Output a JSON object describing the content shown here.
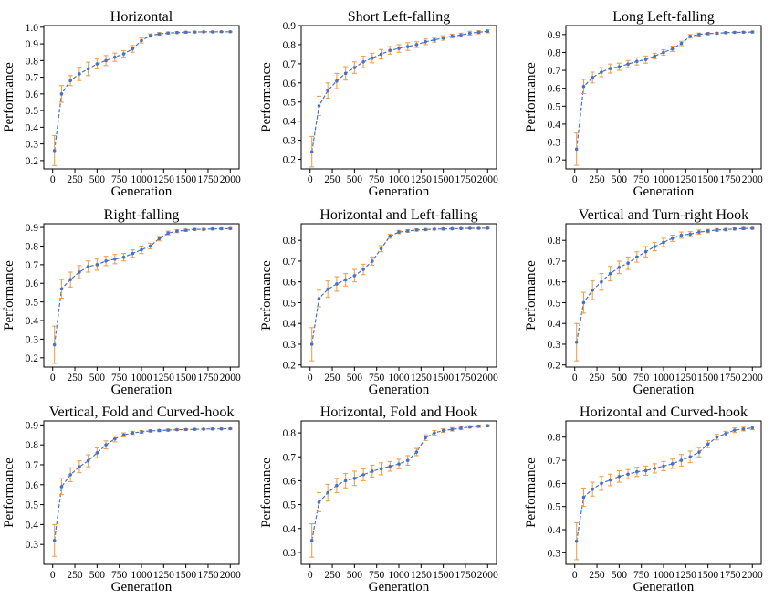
{
  "chart_data": [
    {
      "type": "line",
      "title": "Horizontal",
      "xlabel": "Generation",
      "ylabel": "Performance",
      "xlim": [
        -100,
        2100
      ],
      "ylim": [
        0.15,
        1.01
      ],
      "xticks": [
        0,
        250,
        500,
        750,
        1000,
        1250,
        1500,
        1750,
        2000
      ],
      "yticks": [
        0.2,
        0.3,
        0.4,
        0.5,
        0.6,
        0.7,
        0.8,
        0.9,
        1.0
      ],
      "ytick_labels": [
        "0.2",
        "0.3",
        "0.4",
        "0.5",
        "0.6",
        "0.7",
        "0.8",
        "0.9",
        "1.0"
      ],
      "x": [
        20,
        100,
        200,
        300,
        400,
        500,
        600,
        700,
        800,
        900,
        1000,
        1100,
        1200,
        1300,
        1400,
        1500,
        1600,
        1700,
        1800,
        1900,
        2000
      ],
      "values": [
        0.26,
        0.6,
        0.68,
        0.72,
        0.75,
        0.78,
        0.8,
        0.82,
        0.84,
        0.87,
        0.92,
        0.95,
        0.96,
        0.965,
        0.968,
        0.97,
        0.971,
        0.972,
        0.972,
        0.973,
        0.973
      ],
      "error": [
        0.09,
        0.05,
        0.03,
        0.04,
        0.04,
        0.03,
        0.03,
        0.025,
        0.02,
        0.02,
        0.015,
        0.01,
        0.008,
        0.006,
        0.005,
        0.005,
        0.004,
        0.004,
        0.004,
        0.003,
        0.003
      ],
      "line_color": "#4a72c4",
      "error_color": "#f0a050"
    },
    {
      "type": "line",
      "title": "Short Left-falling",
      "xlabel": "Generation",
      "ylabel": "Performance",
      "xlim": [
        -100,
        2100
      ],
      "ylim": [
        0.15,
        0.9
      ],
      "xticks": [
        0,
        250,
        500,
        750,
        1000,
        1250,
        1500,
        1750,
        2000
      ],
      "yticks": [
        0.2,
        0.3,
        0.4,
        0.5,
        0.6,
        0.7,
        0.8,
        0.9
      ],
      "ytick_labels": [
        "0.2",
        "0.3",
        "0.4",
        "0.5",
        "0.6",
        "0.7",
        "0.8",
        "0.9"
      ],
      "x": [
        20,
        100,
        200,
        300,
        400,
        500,
        600,
        700,
        800,
        900,
        1000,
        1100,
        1200,
        1300,
        1400,
        1500,
        1600,
        1700,
        1800,
        1900,
        2000
      ],
      "values": [
        0.24,
        0.48,
        0.56,
        0.61,
        0.65,
        0.68,
        0.71,
        0.73,
        0.75,
        0.77,
        0.78,
        0.79,
        0.8,
        0.815,
        0.825,
        0.835,
        0.845,
        0.85,
        0.86,
        0.865,
        0.87
      ],
      "error": [
        0.08,
        0.05,
        0.04,
        0.04,
        0.035,
        0.03,
        0.03,
        0.025,
        0.025,
        0.02,
        0.02,
        0.02,
        0.015,
        0.015,
        0.012,
        0.012,
        0.01,
        0.01,
        0.01,
        0.008,
        0.008
      ],
      "line_color": "#4a72c4",
      "error_color": "#f0a050"
    },
    {
      "type": "line",
      "title": "Long Left-falling",
      "xlabel": "Generation",
      "ylabel": "Performance",
      "xlim": [
        -100,
        2100
      ],
      "ylim": [
        0.15,
        0.95
      ],
      "xticks": [
        0,
        250,
        500,
        750,
        1000,
        1250,
        1500,
        1750,
        2000
      ],
      "yticks": [
        0.2,
        0.3,
        0.4,
        0.5,
        0.6,
        0.7,
        0.8,
        0.9
      ],
      "ytick_labels": [
        "0.2",
        "0.3",
        "0.4",
        "0.5",
        "0.6",
        "0.7",
        "0.8",
        "0.9"
      ],
      "x": [
        20,
        100,
        200,
        300,
        400,
        500,
        600,
        700,
        800,
        900,
        1000,
        1100,
        1200,
        1300,
        1400,
        1500,
        1600,
        1700,
        1800,
        1900,
        2000
      ],
      "values": [
        0.26,
        0.61,
        0.66,
        0.69,
        0.71,
        0.72,
        0.735,
        0.75,
        0.76,
        0.78,
        0.8,
        0.82,
        0.85,
        0.89,
        0.9,
        0.905,
        0.907,
        0.91,
        0.912,
        0.913,
        0.914
      ],
      "error": [
        0.09,
        0.04,
        0.03,
        0.025,
        0.025,
        0.02,
        0.02,
        0.02,
        0.02,
        0.015,
        0.015,
        0.015,
        0.012,
        0.01,
        0.008,
        0.006,
        0.005,
        0.005,
        0.004,
        0.004,
        0.004
      ],
      "line_color": "#4a72c4",
      "error_color": "#f0a050"
    },
    {
      "type": "line",
      "title": "Right-falling",
      "xlabel": "Generation",
      "ylabel": "Performance",
      "xlim": [
        -100,
        2100
      ],
      "ylim": [
        0.15,
        0.92
      ],
      "xticks": [
        0,
        250,
        500,
        750,
        1000,
        1250,
        1500,
        1750,
        2000
      ],
      "yticks": [
        0.2,
        0.3,
        0.4,
        0.5,
        0.6,
        0.7,
        0.8,
        0.9
      ],
      "ytick_labels": [
        "0.2",
        "0.3",
        "0.4",
        "0.5",
        "0.6",
        "0.7",
        "0.8",
        "0.9"
      ],
      "x": [
        20,
        100,
        200,
        300,
        400,
        500,
        600,
        700,
        800,
        900,
        1000,
        1100,
        1200,
        1300,
        1400,
        1500,
        1600,
        1700,
        1800,
        1900,
        2000
      ],
      "values": [
        0.27,
        0.57,
        0.62,
        0.66,
        0.69,
        0.7,
        0.72,
        0.73,
        0.74,
        0.76,
        0.78,
        0.8,
        0.84,
        0.87,
        0.88,
        0.885,
        0.89,
        0.89,
        0.892,
        0.893,
        0.894
      ],
      "error": [
        0.1,
        0.05,
        0.04,
        0.035,
        0.03,
        0.03,
        0.025,
        0.025,
        0.02,
        0.02,
        0.02,
        0.015,
        0.012,
        0.01,
        0.008,
        0.006,
        0.005,
        0.005,
        0.004,
        0.004,
        0.004
      ],
      "line_color": "#4a72c4",
      "error_color": "#f0a050"
    },
    {
      "type": "line",
      "title": "Horizontal and Left-falling",
      "xlabel": "Generation",
      "ylabel": "Performance",
      "xlim": [
        -100,
        2100
      ],
      "ylim": [
        0.19,
        0.88
      ],
      "xticks": [
        0,
        250,
        500,
        750,
        1000,
        1250,
        1500,
        1750,
        2000
      ],
      "yticks": [
        0.2,
        0.3,
        0.4,
        0.5,
        0.6,
        0.7,
        0.8
      ],
      "ytick_labels": [
        "0.2",
        "0.3",
        "0.4",
        "0.5",
        "0.6",
        "0.7",
        "0.8"
      ],
      "x": [
        20,
        100,
        200,
        300,
        400,
        500,
        600,
        700,
        800,
        900,
        1000,
        1100,
        1200,
        1300,
        1400,
        1500,
        1600,
        1700,
        1800,
        1900,
        2000
      ],
      "values": [
        0.3,
        0.52,
        0.565,
        0.59,
        0.61,
        0.63,
        0.66,
        0.7,
        0.76,
        0.82,
        0.84,
        0.845,
        0.85,
        0.852,
        0.854,
        0.855,
        0.856,
        0.857,
        0.858,
        0.858,
        0.859
      ],
      "error": [
        0.08,
        0.04,
        0.04,
        0.035,
        0.03,
        0.03,
        0.025,
        0.02,
        0.015,
        0.01,
        0.008,
        0.006,
        0.005,
        0.005,
        0.004,
        0.004,
        0.003,
        0.003,
        0.003,
        0.003,
        0.003
      ],
      "line_color": "#4a72c4",
      "error_color": "#f0a050"
    },
    {
      "type": "line",
      "title": "Vertical and Turn-right Hook",
      "xlabel": "Generation",
      "ylabel": "Performance",
      "xlim": [
        -100,
        2100
      ],
      "ylim": [
        0.19,
        0.88
      ],
      "xticks": [
        0,
        250,
        500,
        750,
        1000,
        1250,
        1500,
        1750,
        2000
      ],
      "yticks": [
        0.2,
        0.3,
        0.4,
        0.5,
        0.6,
        0.7,
        0.8
      ],
      "ytick_labels": [
        "0.2",
        "0.3",
        "0.4",
        "0.5",
        "0.6",
        "0.7",
        "0.8"
      ],
      "x": [
        20,
        100,
        200,
        300,
        400,
        500,
        600,
        700,
        800,
        900,
        1000,
        1100,
        1200,
        1300,
        1400,
        1500,
        1600,
        1700,
        1800,
        1900,
        2000
      ],
      "values": [
        0.31,
        0.5,
        0.56,
        0.6,
        0.64,
        0.67,
        0.69,
        0.72,
        0.745,
        0.77,
        0.79,
        0.81,
        0.825,
        0.83,
        0.84,
        0.845,
        0.85,
        0.852,
        0.855,
        0.857,
        0.858
      ],
      "error": [
        0.09,
        0.05,
        0.045,
        0.04,
        0.035,
        0.03,
        0.03,
        0.025,
        0.025,
        0.02,
        0.02,
        0.015,
        0.015,
        0.012,
        0.01,
        0.008,
        0.007,
        0.006,
        0.005,
        0.005,
        0.004
      ],
      "line_color": "#4a72c4",
      "error_color": "#f0a050"
    },
    {
      "type": "line",
      "title": "Vertical, Fold and Curved-hook",
      "xlabel": "Generation",
      "ylabel": "Performance",
      "xlim": [
        -100,
        2100
      ],
      "ylim": [
        0.2,
        0.92
      ],
      "xticks": [
        0,
        250,
        500,
        750,
        1000,
        1250,
        1500,
        1750,
        2000
      ],
      "yticks": [
        0.3,
        0.4,
        0.5,
        0.6,
        0.7,
        0.8,
        0.9
      ],
      "ytick_labels": [
        "0.3",
        "0.4",
        "0.5",
        "0.6",
        "0.7",
        "0.8",
        "0.9"
      ],
      "x": [
        20,
        100,
        200,
        300,
        400,
        500,
        600,
        700,
        800,
        900,
        1000,
        1100,
        1200,
        1300,
        1400,
        1500,
        1600,
        1700,
        1800,
        1900,
        2000
      ],
      "values": [
        0.32,
        0.59,
        0.65,
        0.69,
        0.72,
        0.76,
        0.8,
        0.83,
        0.85,
        0.86,
        0.865,
        0.87,
        0.872,
        0.874,
        0.876,
        0.877,
        0.878,
        0.879,
        0.88,
        0.88,
        0.881
      ],
      "error": [
        0.08,
        0.04,
        0.035,
        0.03,
        0.03,
        0.025,
        0.02,
        0.015,
        0.01,
        0.008,
        0.007,
        0.006,
        0.005,
        0.005,
        0.004,
        0.004,
        0.004,
        0.003,
        0.003,
        0.003,
        0.003
      ],
      "line_color": "#4a72c4",
      "error_color": "#f0a050"
    },
    {
      "type": "line",
      "title": "Horizontal, Fold and Hook",
      "xlabel": "Generation",
      "ylabel": "Performance",
      "xlim": [
        -100,
        2100
      ],
      "ylim": [
        0.25,
        0.85
      ],
      "xticks": [
        0,
        250,
        500,
        750,
        1000,
        1250,
        1500,
        1750,
        2000
      ],
      "yticks": [
        0.3,
        0.4,
        0.5,
        0.6,
        0.7,
        0.8
      ],
      "ytick_labels": [
        "0.3",
        "0.4",
        "0.5",
        "0.6",
        "0.7",
        "0.8"
      ],
      "x": [
        20,
        100,
        200,
        300,
        400,
        500,
        600,
        700,
        800,
        900,
        1000,
        1100,
        1200,
        1300,
        1400,
        1500,
        1600,
        1700,
        1800,
        1900,
        2000
      ],
      "values": [
        0.35,
        0.51,
        0.55,
        0.58,
        0.6,
        0.61,
        0.625,
        0.64,
        0.65,
        0.66,
        0.67,
        0.685,
        0.72,
        0.78,
        0.8,
        0.81,
        0.815,
        0.82,
        0.825,
        0.828,
        0.83
      ],
      "error": [
        0.07,
        0.04,
        0.035,
        0.03,
        0.03,
        0.03,
        0.025,
        0.025,
        0.025,
        0.02,
        0.02,
        0.02,
        0.015,
        0.012,
        0.01,
        0.008,
        0.007,
        0.006,
        0.005,
        0.005,
        0.004
      ],
      "line_color": "#4a72c4",
      "error_color": "#f0a050"
    },
    {
      "type": "line",
      "title": "Horizontal and Curved-hook",
      "xlabel": "Generation",
      "ylabel": "Performance",
      "xlim": [
        -100,
        2100
      ],
      "ylim": [
        0.25,
        0.87
      ],
      "xticks": [
        0,
        250,
        500,
        750,
        1000,
        1250,
        1500,
        1750,
        2000
      ],
      "yticks": [
        0.3,
        0.4,
        0.5,
        0.6,
        0.7,
        0.8
      ],
      "ytick_labels": [
        "0.3",
        "0.4",
        "0.5",
        "0.6",
        "0.7",
        "0.8"
      ],
      "x": [
        20,
        100,
        200,
        300,
        400,
        500,
        600,
        700,
        800,
        900,
        1000,
        1100,
        1200,
        1300,
        1400,
        1500,
        1600,
        1700,
        1800,
        1900,
        2000
      ],
      "values": [
        0.35,
        0.54,
        0.575,
        0.6,
        0.615,
        0.63,
        0.64,
        0.65,
        0.655,
        0.665,
        0.675,
        0.685,
        0.7,
        0.715,
        0.735,
        0.77,
        0.8,
        0.815,
        0.83,
        0.835,
        0.84
      ],
      "error": [
        0.08,
        0.04,
        0.03,
        0.03,
        0.025,
        0.025,
        0.02,
        0.02,
        0.02,
        0.02,
        0.02,
        0.02,
        0.025,
        0.025,
        0.02,
        0.015,
        0.012,
        0.01,
        0.01,
        0.008,
        0.008
      ],
      "line_color": "#4a72c4",
      "error_color": "#f0a050"
    }
  ]
}
